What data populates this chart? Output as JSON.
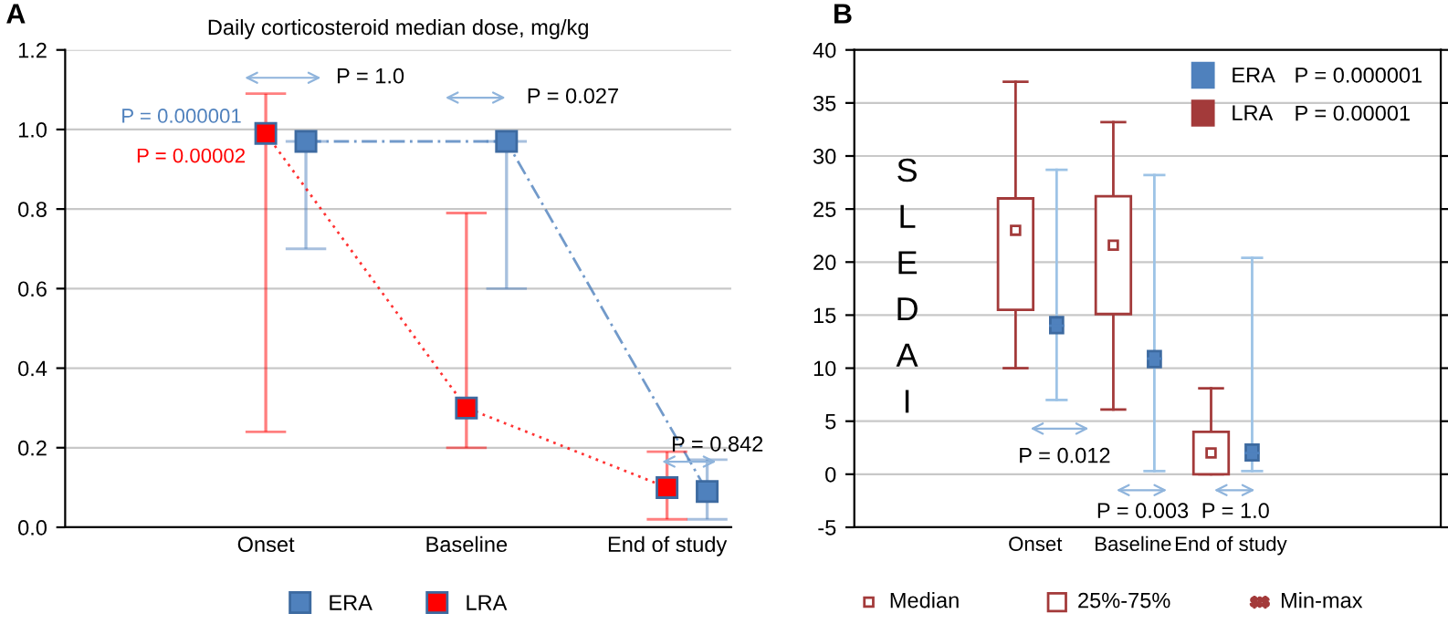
{
  "chart_data": [
    {
      "type": "line",
      "title": "Daily corticosteroid median dose, mg/kg",
      "categories": [
        "Onset",
        "Baseline",
        "End of study"
      ],
      "ylim": [
        0,
        1.2
      ],
      "yticks": [
        {
          "value": 0,
          "label": "0.0"
        },
        {
          "value": 0.2,
          "label": "0.2"
        },
        {
          "value": 0.4,
          "label": "0.4"
        },
        {
          "value": 0.6,
          "label": "0.6"
        },
        {
          "value": 0.8,
          "label": "0.8"
        },
        {
          "value": 1.0,
          "label": "1.0"
        },
        {
          "value": 1.2,
          "label": "1.2"
        }
      ],
      "grid": "y",
      "legend": "bottom",
      "marker": "square",
      "series": [
        {
          "name": "ERA",
          "color": "#4f81bd",
          "line_style": "dashed",
          "values": [
            0.97,
            0.97,
            0.09
          ],
          "errors": [
            [
              0.7,
              0.97
            ],
            [
              0.6,
              0.97
            ],
            [
              0.02,
              0.17
            ]
          ]
        },
        {
          "name": "LRA",
          "color": "#ff0000",
          "line_style": "dotted",
          "values": [
            0.99,
            0.3,
            0.1
          ],
          "errors": [
            [
              0.24,
              1.09
            ],
            [
              0.2,
              0.79
            ],
            [
              0.02,
              0.19
            ]
          ]
        }
      ],
      "annotations": [
        "A",
        "P = 1.0",
        "P = 0.027",
        "P = 0.842",
        "P = 0.000001",
        "P = 0.00002"
      ]
    },
    {
      "type": "box",
      "ylabel": "SLEDAI",
      "categories": [
        "Onset",
        "Baseline",
        "End of study"
      ],
      "ylim": [
        -5,
        40
      ],
      "yticks": [
        -5,
        0,
        5,
        10,
        15,
        20,
        25,
        30,
        35,
        40
      ],
      "grid": "y",
      "legend": "top right",
      "series": [
        {
          "name": "ERA",
          "color": "#4f81bd",
          "boxes": [
            {
              "low": 7,
              "q1": 13.3,
              "median": 14,
              "q3": 14.8,
              "high": 28.7
            },
            {
              "low": 0.3,
              "q1": 10.1,
              "median": 10.9,
              "q3": 11.6,
              "high": 28.2
            },
            {
              "low": 0.3,
              "q1": 1.3,
              "median": 2,
              "q3": 2.8,
              "high": 20.4
            }
          ]
        },
        {
          "name": "LRA",
          "color": "#a33a3a",
          "boxes": [
            {
              "low": 10,
              "q1": 15.5,
              "median": 23,
              "q3": 26,
              "high": 37
            },
            {
              "low": 6.1,
              "q1": 15.1,
              "median": 21.6,
              "q3": 26.2,
              "high": 33.2
            },
            {
              "low": 0,
              "q1": 0,
              "median": 2,
              "q3": 4,
              "high": 8.1
            }
          ]
        }
      ],
      "annotations": [
        "B",
        "P = 0.012",
        "P = 0.003",
        "P = 1.0",
        "P = 0.000001",
        "P = 0.00001",
        "Median",
        "25%-75%",
        "Min-max"
      ]
    }
  ]
}
